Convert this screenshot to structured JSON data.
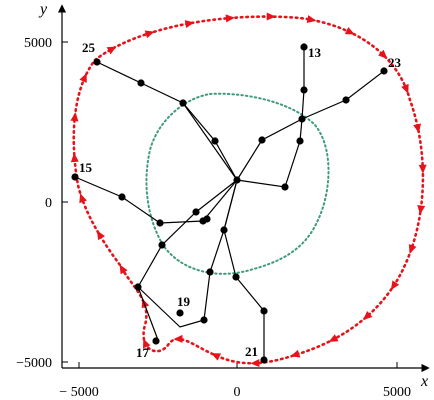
{
  "axes": {
    "x_name": "x",
    "y_name": "y",
    "x_ticks": [
      {
        "value": -5000,
        "label": "− 5000"
      },
      {
        "value": 0,
        "label": "0"
      },
      {
        "value": 5000,
        "label": "5000"
      }
    ],
    "y_ticks": [
      {
        "value": 5000,
        "label": "5000"
      },
      {
        "value": 0,
        "label": "0"
      },
      {
        "value": -5000,
        "label": "−5000"
      }
    ]
  },
  "node_labels": [
    {
      "node": "n25",
      "text": "25"
    },
    {
      "node": "n13",
      "text": "13"
    },
    {
      "node": "n23",
      "text": "23"
    },
    {
      "node": "n15",
      "text": "15"
    },
    {
      "node": "n19",
      "text": "19"
    },
    {
      "node": "n17",
      "text": "17"
    },
    {
      "node": "n21",
      "text": "21"
    }
  ],
  "colors": {
    "tree": "#000000",
    "route": "#e8121a",
    "inner_curve": "#3f9a7e"
  }
}
